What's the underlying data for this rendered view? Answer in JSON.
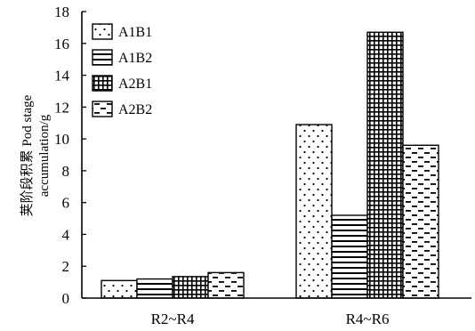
{
  "chart_data": {
    "type": "bar",
    "title": "",
    "xlabel": "",
    "ylabel": [
      "荚阶段积累 Pod stage",
      "accumulation/g"
    ],
    "ylim": [
      0,
      18
    ],
    "yticks": [
      0,
      2,
      4,
      6,
      8,
      10,
      12,
      14,
      16,
      18
    ],
    "categories": [
      "R2~R4",
      "R4~R6"
    ],
    "series": [
      {
        "name": "A1B1",
        "pattern": "dots",
        "values": [
          1.1,
          10.9
        ]
      },
      {
        "name": "A1B2",
        "pattern": "hlines",
        "values": [
          1.2,
          5.2
        ]
      },
      {
        "name": "A2B1",
        "pattern": "grid",
        "values": [
          1.35,
          16.7
        ]
      },
      {
        "name": "A2B2",
        "pattern": "dashes",
        "values": [
          1.6,
          9.6
        ]
      }
    ],
    "legend_position": "top-left",
    "grid": false,
    "colors": {
      "stroke": "#000000",
      "background": "#ffffff"
    }
  }
}
